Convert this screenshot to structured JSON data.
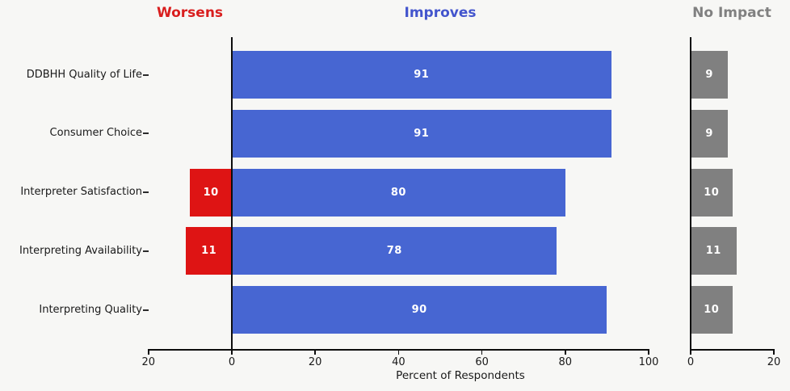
{
  "figure": {
    "background": "#f7f7f5",
    "sections": [
      {
        "id": "worsens",
        "title": "Worsens",
        "title_color": "#d91e1e"
      },
      {
        "id": "improves",
        "title": "Improves",
        "title_color": "#4355cd"
      },
      {
        "id": "no_impact",
        "title": "No Impact",
        "title_color": "#808080"
      }
    ]
  },
  "chart_data": {
    "type": "bar",
    "orientation": "horizontal",
    "title": "",
    "xlabel": "Percent of Respondents",
    "categories": [
      "DDBHH Quality of Life",
      "Consumer Choice",
      "Interpreter Satisfaction",
      "Interpreting Availability",
      "Interpreting Quality"
    ],
    "series": [
      {
        "name": "Worsens",
        "panel": "main",
        "direction": "left",
        "color": "#de1414",
        "label_color": "#ffffff",
        "values": [
          0,
          0,
          10,
          11,
          0
        ]
      },
      {
        "name": "Improves",
        "panel": "main",
        "direction": "right",
        "color": "#4766d2",
        "label_color": "#ffffff",
        "values": [
          91,
          91,
          80,
          78,
          90
        ]
      },
      {
        "name": "No Impact",
        "panel": "secondary",
        "direction": "right",
        "color": "#808080",
        "label_color": "#ffffff",
        "values": [
          9,
          9,
          10,
          11,
          10
        ]
      }
    ],
    "main_axis": {
      "xlim": [
        -20,
        100
      ],
      "ticks": [
        -20,
        0,
        20,
        40,
        60,
        80,
        100
      ],
      "tick_labels": [
        "20",
        "0",
        "20",
        "40",
        "60",
        "80",
        "100"
      ]
    },
    "secondary_axis": {
      "xlim": [
        0,
        20
      ],
      "ticks": [
        0,
        20
      ],
      "tick_labels": [
        "0",
        "20"
      ]
    },
    "grid": false,
    "legend_position": "none",
    "value_labels": "inside-center, white bold"
  }
}
